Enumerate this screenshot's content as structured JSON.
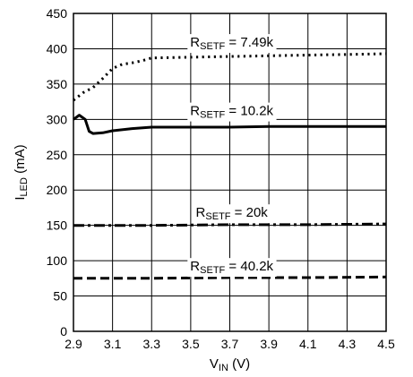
{
  "chart_data": {
    "type": "line",
    "title": "",
    "xlabel": {
      "main": "V",
      "sub": "IN",
      "unit": " (V)"
    },
    "ylabel": {
      "main": "I",
      "sub": "LED",
      "unit": " (mA)"
    },
    "xlim": [
      2.9,
      4.5
    ],
    "ylim": [
      0,
      450
    ],
    "x_ticks": [
      "2.9",
      "3.1",
      "3.3",
      "3.5",
      "3.7",
      "3.9",
      "4.1",
      "4.3",
      "4.5"
    ],
    "y_ticks": [
      "0",
      "50",
      "100",
      "150",
      "200",
      "250",
      "300",
      "350",
      "400",
      "450"
    ],
    "grid": true,
    "series": [
      {
        "name": "R_SETF = 7.49k",
        "label": {
          "main": "R",
          "sub": "SETF",
          "value": " = 7.49k"
        },
        "style": "dotted",
        "x": [
          2.9,
          2.95,
          3.0,
          3.05,
          3.1,
          3.15,
          3.2,
          3.25,
          3.3,
          3.5,
          3.7,
          3.9,
          4.1,
          4.3,
          4.5
        ],
        "y": [
          327,
          338,
          345,
          358,
          372,
          378,
          380,
          383,
          387,
          388,
          389,
          390,
          391,
          392,
          393
        ]
      },
      {
        "name": "R_SETF = 10.2k",
        "label": {
          "main": "R",
          "sub": "SETF",
          "value": " = 10.2k"
        },
        "style": "solid",
        "x": [
          2.9,
          2.93,
          2.96,
          2.98,
          3.0,
          3.05,
          3.1,
          3.2,
          3.3,
          3.5,
          3.7,
          3.9,
          4.1,
          4.3,
          4.5
        ],
        "y": [
          300,
          306,
          300,
          283,
          280,
          281,
          284,
          287,
          289,
          289,
          289,
          290,
          290,
          290,
          290
        ]
      },
      {
        "name": "R_SETF = 20k",
        "label": {
          "main": "R",
          "sub": "SETF",
          "value": " = 20k"
        },
        "style": "dashdot",
        "x": [
          2.9,
          3.3,
          3.7,
          4.1,
          4.5
        ],
        "y": [
          150,
          150,
          151,
          151,
          152
        ]
      },
      {
        "name": "R_SETF = 40.2k",
        "label": {
          "main": "R",
          "sub": "SETF",
          "value": " = 40.2k"
        },
        "style": "dashed",
        "x": [
          2.9,
          3.3,
          3.7,
          4.1,
          4.5
        ],
        "y": [
          75,
          75,
          76,
          76,
          77
        ]
      }
    ]
  }
}
